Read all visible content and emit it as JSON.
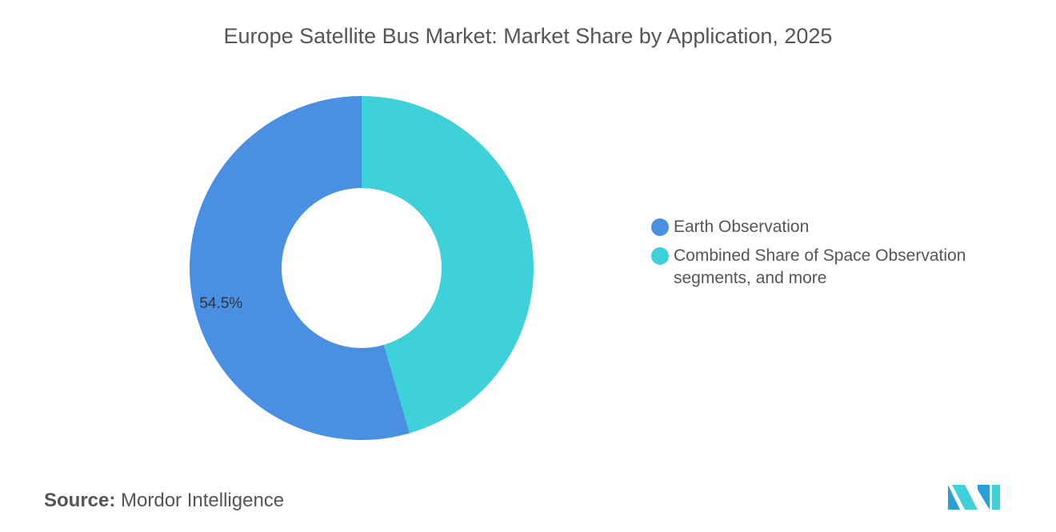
{
  "chart_data": {
    "type": "donut",
    "title": "Europe Satellite Bus Market: Market Share by Application, 2025",
    "categories": [
      "Earth Observation",
      "Combined Share of Space Observation segments, and more"
    ],
    "values": [
      54.5,
      45.5
    ],
    "value_labels": [
      "54.5%",
      null
    ],
    "colors": [
      "#4a90e2",
      "#3fd1da"
    ],
    "source_label": "Source:",
    "source": "Mordor Intelligence"
  }
}
